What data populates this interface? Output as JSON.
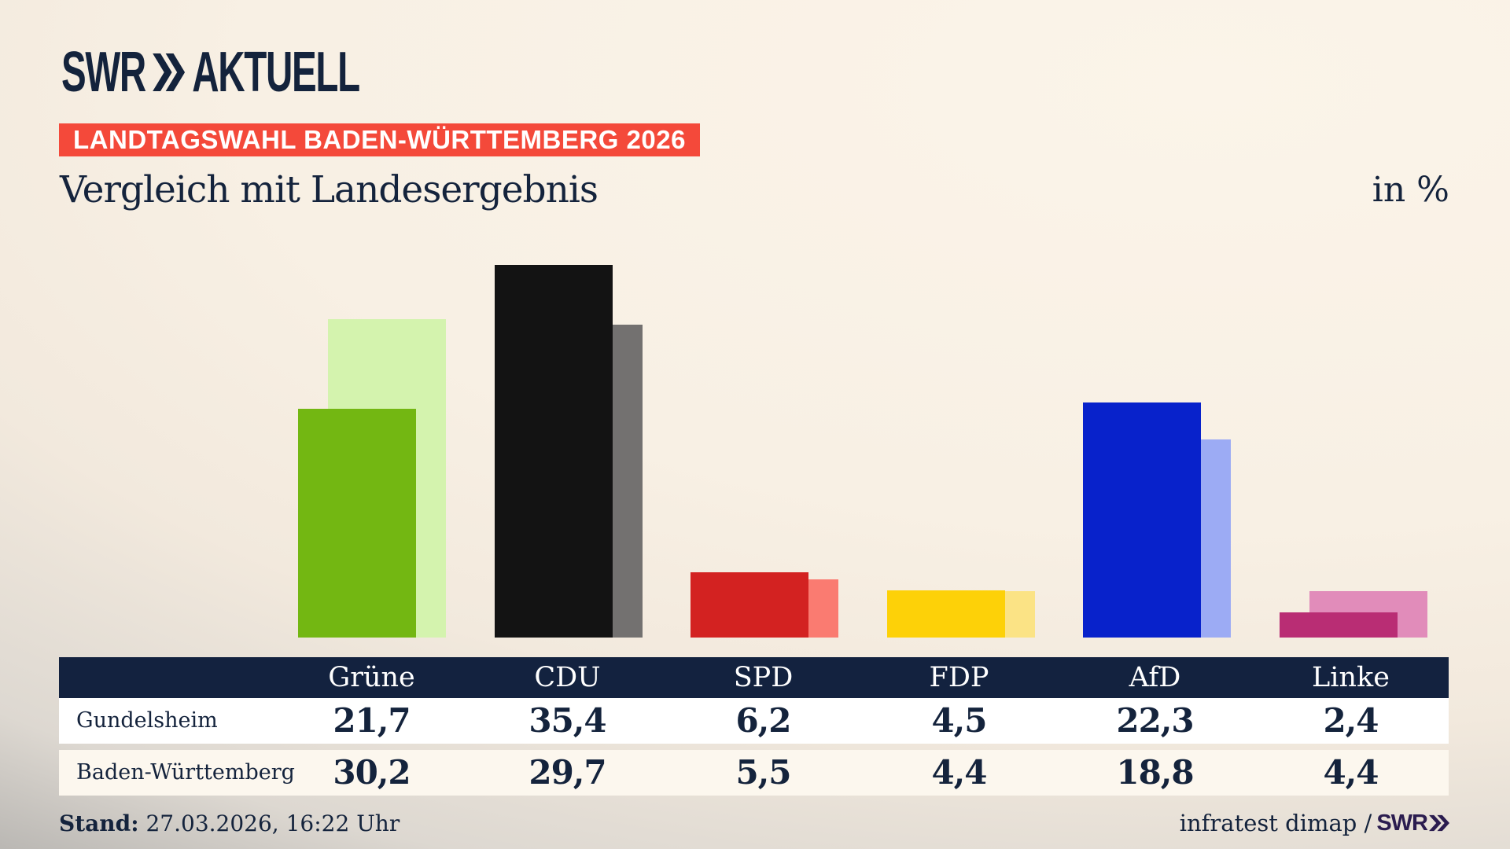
{
  "brand": {
    "swr": "SWR",
    "word": "AKTUELL",
    "color": "#14233c"
  },
  "badge": {
    "text": "LANDTAGSWAHL BADEN-WÜRTTEMBERG 2026",
    "bg_color": "#f4493a",
    "text_color": "#ffffff"
  },
  "title": "Vergleich mit Landesergebnis",
  "unit_label": "in %",
  "chart_data": {
    "type": "bar",
    "title": "Vergleich mit Landesergebnis",
    "unit": "in %",
    "categories": [
      "Grüne",
      "CDU",
      "SPD",
      "FDP",
      "AfD",
      "Linke"
    ],
    "series": [
      {
        "name": "Gundelsheim",
        "values": [
          21.7,
          35.4,
          6.2,
          4.5,
          22.3,
          2.4
        ],
        "colors": [
          "#73b712",
          "#131313",
          "#d32221",
          "#fdd108",
          "#0822cb",
          "#b92d74"
        ]
      },
      {
        "name": "Baden-Württemberg",
        "values": [
          30.2,
          29.7,
          5.5,
          4.4,
          18.8,
          4.4
        ],
        "colors": [
          "#d4f3ae",
          "#737170",
          "#fa7b71",
          "#fbe385",
          "#9cabf4",
          "#e18cba"
        ]
      }
    ],
    "ylim": [
      0,
      40
    ],
    "grid": false,
    "legend_position": "table-below",
    "bar_style": "front series (Gundelsheim) overlaps lighter back series (Baden-Württemberg), offset left"
  },
  "table": {
    "header_colors": {
      "bg": "#13223f",
      "text": "#ffffff"
    },
    "rows": [
      {
        "label": "Gundelsheim",
        "values": [
          "21,7",
          "35,4",
          "6,2",
          "4,5",
          "22,3",
          "2,4"
        ]
      },
      {
        "label": "Baden-Württemberg",
        "values": [
          "30,2",
          "29,7",
          "5,5",
          "4,4",
          "18,8",
          "4,4"
        ]
      }
    ]
  },
  "footer": {
    "stand_label": "Stand:",
    "stand_value": " 27.03.2026, 16:22 Uhr",
    "source_text": "infratest dimap /",
    "source_brand": "SWR"
  }
}
